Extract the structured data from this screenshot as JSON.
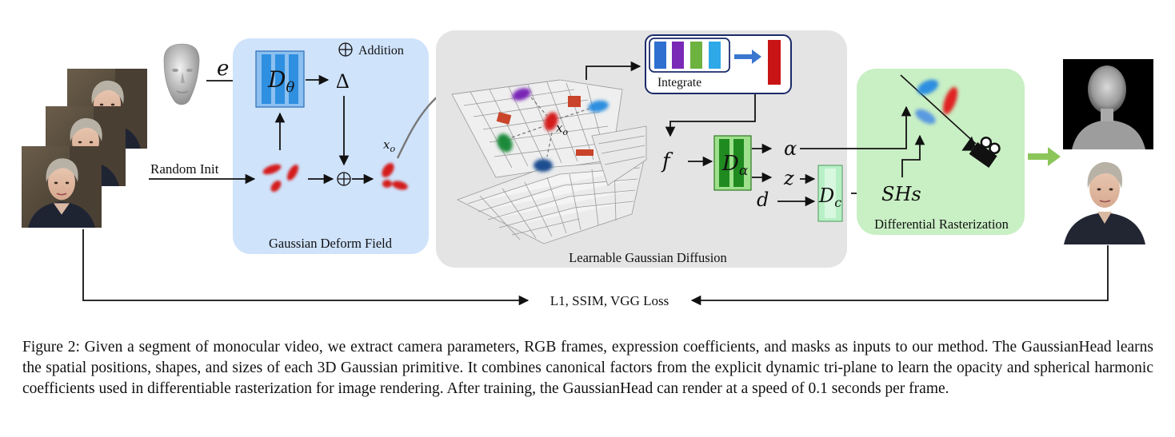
{
  "diagram": {
    "random_init": "Random Init",
    "expression_symbol": "e",
    "deform_net": "D",
    "deform_net_sub": "θ",
    "delta": "Δ",
    "addition_legend": "Addition",
    "gaussian_deform_field": "Gaussian Deform Field",
    "x_o": "x",
    "x_o_sub": "o",
    "integrate": "Integrate",
    "learnable_gaussian_diffusion": "Learnable Gaussian Diffusion",
    "f": "f",
    "alpha_net": "D",
    "alpha_net_sub": "α",
    "alpha": "α",
    "z": "z",
    "d": "d",
    "color_net": "D",
    "color_net_sub": "c",
    "shs": "SHs",
    "differential_rasterization": "Differential Rasterization",
    "loss": "L1, SSIM, VGG Loss"
  },
  "colors": {
    "deform_panel": "#cfe3fb",
    "diffusion_panel": "#e4e4e4",
    "raster_panel": "#c9efc4",
    "arrow_green": "#8cc65a",
    "gaussian_red": "#d41a1a",
    "gaussian_blue": "#2f8fe0"
  },
  "caption": "Figure 2: Given a segment of monocular video, we extract camera parameters, RGB frames, expression coefficients, and masks as inputs to our method. The GaussianHead learns the spatial positions, shapes, and sizes of each 3D Gaussian primitive. It combines canonical factors from the explicit dynamic tri-plane to learn the opacity and spherical harmonic coefficients used in differentiable rasterization for image rendering. After training, the GaussianHead can render at a speed of 0.1 seconds per frame."
}
